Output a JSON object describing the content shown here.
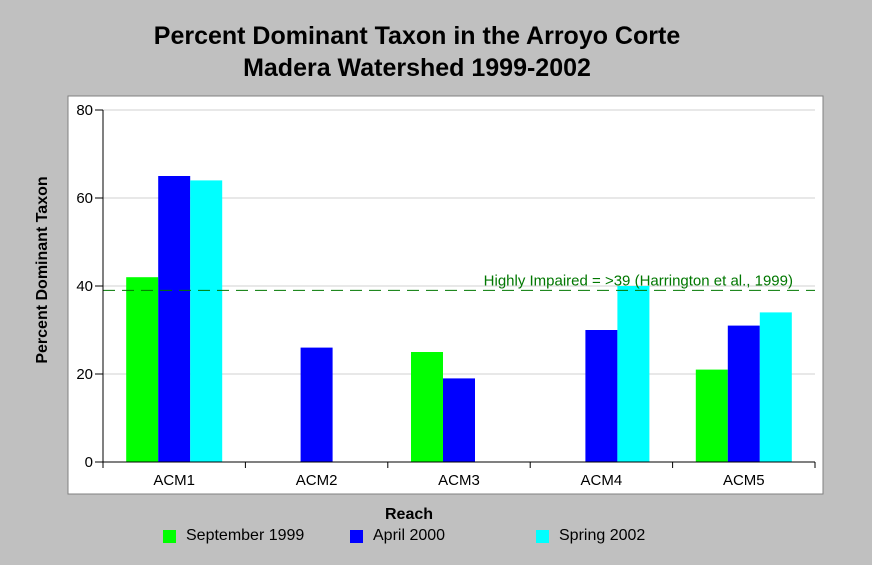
{
  "chart_data": {
    "type": "bar",
    "title_line1": "Percent Dominant Taxon in the Arroyo Corte",
    "title_line2": "Madera Watershed 1999-2002",
    "xlabel": "Reach",
    "ylabel": "Percent Dominant Taxon",
    "ylim": [
      0,
      80
    ],
    "yticks": [
      "0",
      "20",
      "40",
      "60",
      "80"
    ],
    "categories": [
      "ACM1",
      "ACM2",
      "ACM3",
      "ACM4",
      "ACM5"
    ],
    "series": [
      {
        "name": "September 1999",
        "color": "#00ff00",
        "values": [
          42,
          null,
          25,
          null,
          21
        ]
      },
      {
        "name": "April 2000",
        "color": "#0000ff",
        "values": [
          65,
          26,
          19,
          30,
          31
        ]
      },
      {
        "name": "Spring 2002",
        "color": "#00ffff",
        "values": [
          64,
          null,
          null,
          40,
          34
        ]
      }
    ],
    "reference_line": {
      "value": 39,
      "label": "Highly Impaired = >39 (Harrington et al., 1999)",
      "color": "#007700",
      "style": "dashed"
    },
    "grid": true,
    "legend_position": "bottom"
  }
}
